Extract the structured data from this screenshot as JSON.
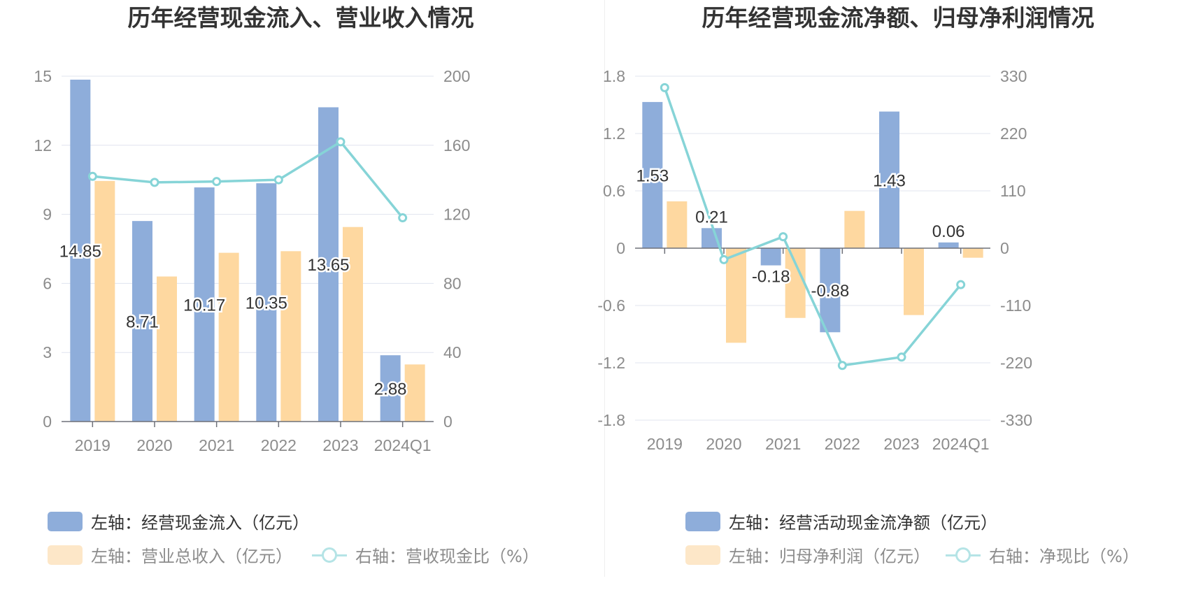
{
  "charts": {
    "left": {
      "title": "历年经营现金流入、营业收入情况",
      "legend": {
        "bar1": "左轴：经营现金流入（亿元）",
        "bar2": "左轴：营业总收入（亿元）",
        "line": "右轴：营收现金比（%）"
      }
    },
    "right": {
      "title": "历年经营现金流净额、归母净利润情况",
      "legend": {
        "bar1": "左轴：经营活动现金流净额（亿元）",
        "bar2": "左轴：归母净利润（亿元）",
        "line": "右轴：净现比（%）"
      }
    }
  },
  "colors": {
    "bar1": "#8eadda",
    "bar2": "#fed8a0",
    "line": "#86d4d7",
    "grid": "#e0e4ef",
    "axis": "#6e7079",
    "tick": "#8c8c8c"
  },
  "chart_data": [
    {
      "type": "bar",
      "title": "历年经营现金流入、营业收入情况",
      "categories": [
        "2019",
        "2020",
        "2021",
        "2022",
        "2023",
        "2024Q1"
      ],
      "left_axis": {
        "ticks": [
          "0",
          "3",
          "6",
          "9",
          "12",
          "15"
        ],
        "ylim": [
          0,
          15
        ]
      },
      "right_axis": {
        "ticks": [
          "0",
          "40",
          "80",
          "120",
          "160",
          "200"
        ],
        "ylim": [
          0,
          200
        ]
      },
      "series": [
        {
          "name": "左轴：经营现金流入（亿元）",
          "axis": "left",
          "kind": "bar",
          "values": [
            14.85,
            8.71,
            10.17,
            10.35,
            13.65,
            2.88
          ],
          "labels": [
            "14.85",
            "8.71",
            "10.17",
            "10.35",
            "13.65",
            "2.88"
          ]
        },
        {
          "name": "左轴：营业总收入（亿元）",
          "axis": "left",
          "kind": "bar",
          "values": [
            10.45,
            6.3,
            7.33,
            7.4,
            8.45,
            2.48
          ]
        },
        {
          "name": "右轴：营收现金比（%）",
          "axis": "right",
          "kind": "line",
          "values": [
            142,
            138.5,
            139,
            140,
            162,
            118
          ]
        }
      ]
    },
    {
      "type": "bar",
      "title": "历年经营现金流净额、归母净利润情况",
      "categories": [
        "2019",
        "2020",
        "2021",
        "2022",
        "2023",
        "2024Q1"
      ],
      "left_axis": {
        "ticks": [
          "-1.8",
          "-1.2",
          "-0.6",
          "0",
          "0.6",
          "1.2",
          "1.8"
        ],
        "ylim": [
          -1.8,
          1.8
        ]
      },
      "right_axis": {
        "ticks": [
          "-330",
          "-220",
          "-110",
          "0",
          "110",
          "220",
          "330"
        ],
        "ylim": [
          -330,
          330
        ]
      },
      "series": [
        {
          "name": "左轴：经营活动现金流净额（亿元）",
          "axis": "left",
          "kind": "bar",
          "values": [
            1.53,
            0.21,
            -0.18,
            -0.88,
            1.43,
            0.06
          ],
          "labels": [
            "1.53",
            "0.21",
            "-0.18",
            "-0.88",
            "1.43",
            "0.06"
          ]
        },
        {
          "name": "左轴：归母净利润（亿元）",
          "axis": "left",
          "kind": "bar",
          "values": [
            0.49,
            -0.99,
            -0.73,
            0.39,
            -0.7,
            -0.1
          ]
        },
        {
          "name": "右轴：净现比（%）",
          "axis": "right",
          "kind": "line",
          "values": [
            308,
            -22,
            22,
            -225,
            -209,
            -70
          ]
        }
      ]
    }
  ]
}
